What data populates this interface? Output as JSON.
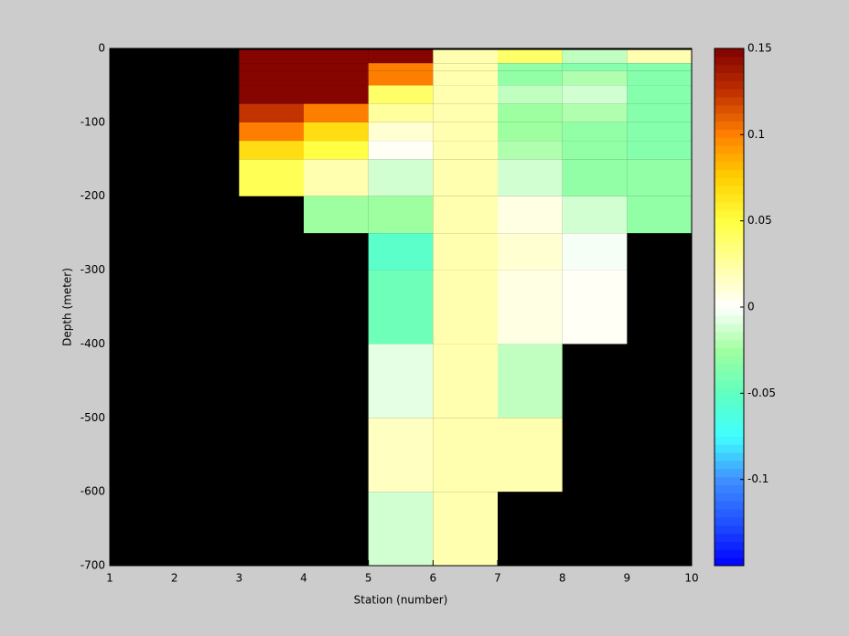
{
  "chart_data": {
    "type": "heatmap",
    "xlabel": "Station (number)",
    "ylabel": "Depth (meter)",
    "x_edges": [
      1,
      2,
      3,
      4,
      5,
      6,
      7,
      8,
      9,
      10
    ],
    "y_edges": [
      -2,
      -20,
      -30,
      -50,
      -75,
      -100,
      -125,
      -150,
      -200,
      -250,
      -300,
      -400,
      -500,
      -600,
      -700
    ],
    "values": [
      [
        null,
        null,
        0.15,
        0.15,
        0.15,
        0.02,
        0.04,
        -0.015,
        0.02
      ],
      [
        null,
        null,
        0.15,
        0.15,
        0.1,
        0.02,
        -0.03,
        -0.035,
        -0.035
      ],
      [
        null,
        null,
        0.15,
        0.15,
        0.1,
        0.02,
        -0.03,
        -0.02,
        -0.035
      ],
      [
        null,
        null,
        0.15,
        0.15,
        0.04,
        0.02,
        -0.015,
        -0.01,
        -0.035
      ],
      [
        null,
        null,
        0.125,
        0.1,
        0.025,
        0.02,
        -0.025,
        -0.02,
        -0.035
      ],
      [
        null,
        null,
        0.1,
        0.07,
        0.01,
        0.02,
        -0.025,
        -0.03,
        -0.035
      ],
      [
        null,
        null,
        0.07,
        0.05,
        0,
        0.02,
        -0.02,
        -0.03,
        -0.035
      ],
      [
        null,
        null,
        0.045,
        0.02,
        -0.01,
        0.02,
        -0.012,
        -0.03,
        -0.03
      ],
      [
        null,
        null,
        null,
        -0.025,
        -0.025,
        0.02,
        0.005,
        -0.012,
        -0.03
      ],
      [
        null,
        null,
        null,
        null,
        -0.055,
        0.02,
        0.01,
        -0.003,
        null
      ],
      [
        null,
        null,
        null,
        null,
        -0.045,
        0.02,
        0.005,
        0.003,
        null
      ],
      [
        null,
        null,
        null,
        null,
        -0.005,
        0.02,
        -0.015,
        null,
        null
      ],
      [
        null,
        null,
        null,
        null,
        0.015,
        0.02,
        0.02,
        null,
        null
      ],
      [
        null,
        null,
        null,
        null,
        -0.01,
        0.02,
        null,
        null,
        null
      ]
    ],
    "xlim": [
      1,
      10
    ],
    "ylim": [
      -700,
      0
    ],
    "xticks": [
      1,
      2,
      3,
      4,
      5,
      6,
      7,
      8,
      9,
      10
    ],
    "yticks": [
      -700,
      -600,
      -500,
      -400,
      -300,
      -200,
      -100,
      0
    ],
    "background": "#000000",
    "clim": [
      -0.15,
      0.15
    ],
    "cticks": [
      -0.1,
      -0.05,
      0,
      0.05,
      0.1,
      0.15
    ],
    "colormap": [
      "#0000ff",
      "#2050ff",
      "#4090ff",
      "#40ffff",
      "#60ffc0",
      "#a0ffa0",
      "#ffffff",
      "#ffffa0",
      "#ffff40",
      "#ffd000",
      "#ff8000",
      "#c03000",
      "#800000"
    ]
  }
}
